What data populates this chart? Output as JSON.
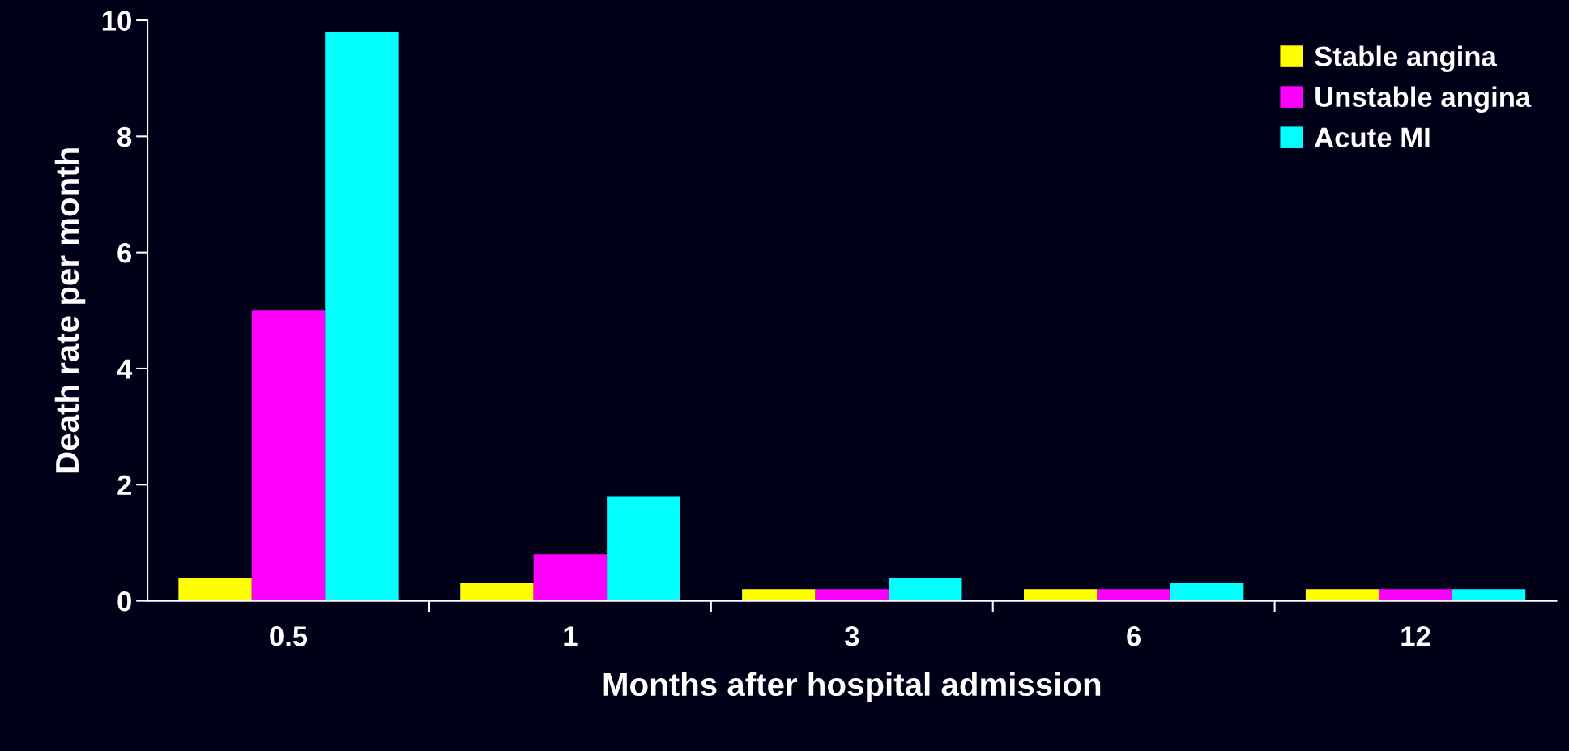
{
  "chart_data": {
    "type": "bar",
    "xlabel": "Months after hospital admission",
    "ylabel": "Death rate per month",
    "categories": [
      "0.5",
      "1",
      "3",
      "6",
      "12"
    ],
    "series": [
      {
        "name": "Stable angina",
        "color": "#ffff00",
        "values": [
          0.4,
          0.3,
          0.2,
          0.2,
          0.2
        ]
      },
      {
        "name": "Unstable angina",
        "color": "#ff00ff",
        "values": [
          5.0,
          0.8,
          0.2,
          0.2,
          0.2
        ]
      },
      {
        "name": "Acute MI",
        "color": "#00ffff",
        "values": [
          9.8,
          1.8,
          0.4,
          0.3,
          0.2
        ]
      }
    ],
    "ylim": [
      0,
      10
    ],
    "yticks": [
      0,
      2,
      4,
      6,
      8,
      10
    ],
    "grid": false,
    "legend": "top right"
  }
}
